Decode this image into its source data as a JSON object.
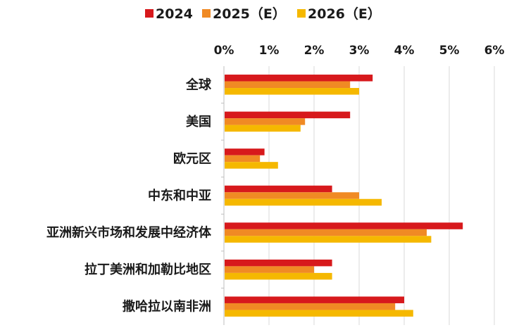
{
  "chart_data": {
    "type": "bar",
    "orientation": "horizontal",
    "title": "",
    "xlabel": "",
    "ylabel": "",
    "xlim": [
      0,
      6
    ],
    "x_ticks": [
      "0%",
      "1%",
      "2%",
      "3%",
      "4%",
      "5%",
      "6%"
    ],
    "x_axis_position": "top",
    "grid": true,
    "legend_position": "top",
    "categories": [
      "全球",
      "美国",
      "欧元区",
      "中东和中亚",
      "亚洲新兴市场和发展中经济体",
      "拉丁美洲和加勒比地区",
      "撒哈拉以南非洲"
    ],
    "series": [
      {
        "name": "2024",
        "color": "#d7191c",
        "values": [
          3.3,
          2.8,
          0.9,
          2.4,
          5.3,
          2.4,
          4.0
        ]
      },
      {
        "name": "2025（E）",
        "color": "#f08a24",
        "values": [
          2.8,
          1.8,
          0.8,
          3.0,
          4.5,
          2.0,
          3.8
        ]
      },
      {
        "name": "2026（E）",
        "color": "#f5b800",
        "values": [
          3.0,
          1.7,
          1.2,
          3.5,
          4.6,
          2.4,
          4.2
        ]
      }
    ]
  }
}
